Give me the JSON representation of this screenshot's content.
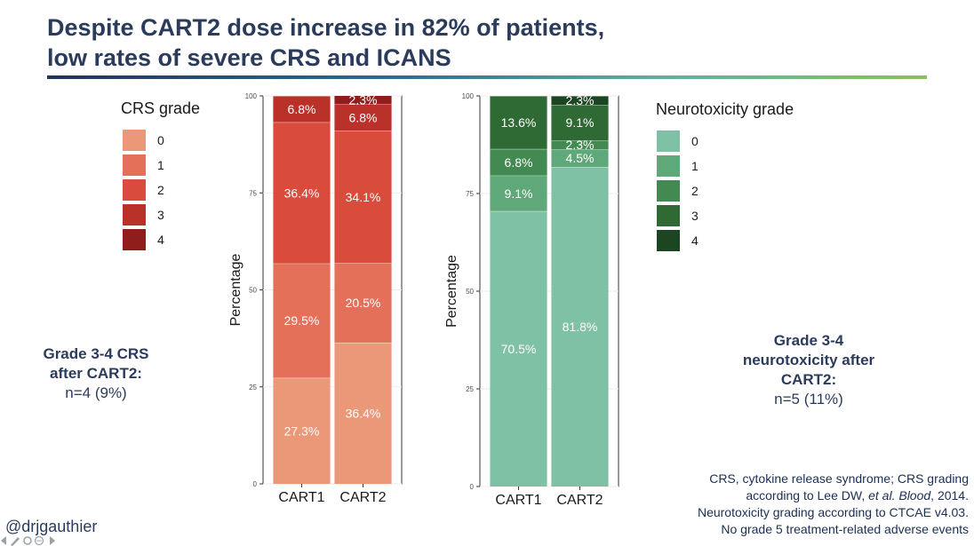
{
  "slide": {
    "title_line1": "Despite CART2 dose increase in 82% of patients,",
    "title_line2": "low rates of severe CRS and ICANS",
    "left_summary": {
      "bold1": "Grade 3-4 CRS",
      "bold2": "after CART2:",
      "normal": "n=4 (9%)"
    },
    "right_summary": {
      "bold1": "Grade 3-4",
      "bold2": "neurotoxicity after",
      "bold3": "CART2:",
      "normal": "n=5 (11%)"
    },
    "footnote": {
      "line1": "CRS, cytokine release syndrome; CRS grading",
      "line2_pre": "according to Lee DW, ",
      "line2_ital": "et al. Blood",
      "line2_post": ", 2014.",
      "line3": "Neurotoxicity grading according to CTCAE v4.03.",
      "line4": "No grade 5 treatment-related adverse events"
    },
    "handle": "@drjgauthier"
  },
  "chart_data": [
    {
      "type": "bar",
      "stacked": true,
      "categories": [
        "CART1",
        "CART2"
      ],
      "ylabel": "Percentage",
      "xlabel": "",
      "ylim": [
        0,
        100
      ],
      "yticks": [
        0,
        25,
        50,
        75,
        100
      ],
      "legend_title": "CRS grade",
      "legend_position": "top-left",
      "series": [
        {
          "name": "0",
          "color": "#eb9878",
          "values": [
            27.3,
            36.4
          ],
          "labels": [
            "27.3%",
            "36.4%"
          ]
        },
        {
          "name": "1",
          "color": "#e5705a",
          "values": [
            29.5,
            20.5
          ],
          "labels": [
            "29.5%",
            "20.5%"
          ]
        },
        {
          "name": "2",
          "color": "#d94b3a",
          "values": [
            36.4,
            34.1
          ],
          "labels": [
            "36.4%",
            "34.1%"
          ]
        },
        {
          "name": "3",
          "color": "#b93129",
          "values": [
            6.8,
            6.8
          ],
          "labels": [
            "6.8%",
            "6.8%"
          ]
        },
        {
          "name": "4",
          "color": "#8f1d1c",
          "values": [
            0,
            2.3
          ],
          "labels": [
            "",
            "2.3%"
          ]
        }
      ]
    },
    {
      "type": "bar",
      "stacked": true,
      "categories": [
        "CART1",
        "CART2"
      ],
      "ylabel": "Percentage",
      "xlabel": "",
      "ylim": [
        0,
        100
      ],
      "yticks": [
        0,
        25,
        50,
        75,
        100
      ],
      "legend_title": "Neurotoxicity grade",
      "legend_position": "top-right",
      "series": [
        {
          "name": "0",
          "color": "#7fc1a5",
          "values": [
            70.5,
            81.8
          ],
          "labels": [
            "70.5%",
            "81.8%"
          ]
        },
        {
          "name": "1",
          "color": "#5fa879",
          "values": [
            9.1,
            4.5
          ],
          "labels": [
            "9.1%",
            "4.5%"
          ]
        },
        {
          "name": "2",
          "color": "#438a52",
          "values": [
            6.8,
            2.3
          ],
          "labels": [
            "6.8%",
            "2.3%"
          ]
        },
        {
          "name": "3",
          "color": "#2f6a35",
          "values": [
            13.6,
            9.1
          ],
          "labels": [
            "13.6%",
            "9.1%"
          ]
        },
        {
          "name": "4",
          "color": "#1c4521",
          "values": [
            0,
            2.3
          ],
          "labels": [
            "",
            "2.3%"
          ]
        }
      ]
    }
  ]
}
